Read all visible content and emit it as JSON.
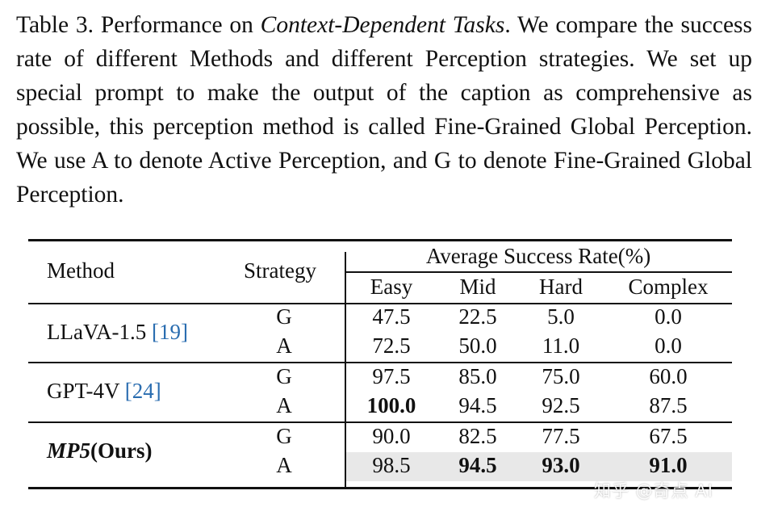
{
  "caption": {
    "label": "Table 3.",
    "lead": " Performance on ",
    "italic": "Context-Dependent Tasks",
    "rest": ". We compare the success rate of different Methods and different Perception strategies. We set up special prompt to make the output of the caption as comprehensive as possible, this perception method is called Fine-Grained Global Perception. We use A to denote Active Perception, and G to denote Fine-Grained Global Perception."
  },
  "table": {
    "headers": {
      "method": "Method",
      "strategy": "Strategy",
      "group": "Average Success Rate(%)",
      "cols": [
        "Easy",
        "Mid",
        "Hard",
        "Complex"
      ]
    },
    "rows": [
      {
        "method": "LLaVA-1.5 ",
        "ref": "[19]",
        "strategy": "G",
        "values": [
          "47.5",
          "22.5",
          "5.0",
          "0.0"
        ]
      },
      {
        "strategy": "A",
        "values": [
          "72.5",
          "50.0",
          "11.0",
          "0.0"
        ]
      },
      {
        "method": "GPT-4V ",
        "ref": "[24]",
        "strategy": "G",
        "values": [
          "97.5",
          "85.0",
          "75.0",
          "60.0"
        ]
      },
      {
        "strategy": "A",
        "values": [
          "100.0",
          "94.5",
          "92.5",
          "87.5"
        ]
      },
      {
        "method_bold": "MP5",
        "method_rest": "(Ours)",
        "strategy": "G",
        "values": [
          "90.0",
          "82.5",
          "77.5",
          "67.5"
        ]
      },
      {
        "strategy": "A",
        "values": [
          "98.5",
          "94.5",
          "93.0",
          "91.0"
        ]
      }
    ]
  },
  "watermark": "知乎 @奇点 AI"
}
